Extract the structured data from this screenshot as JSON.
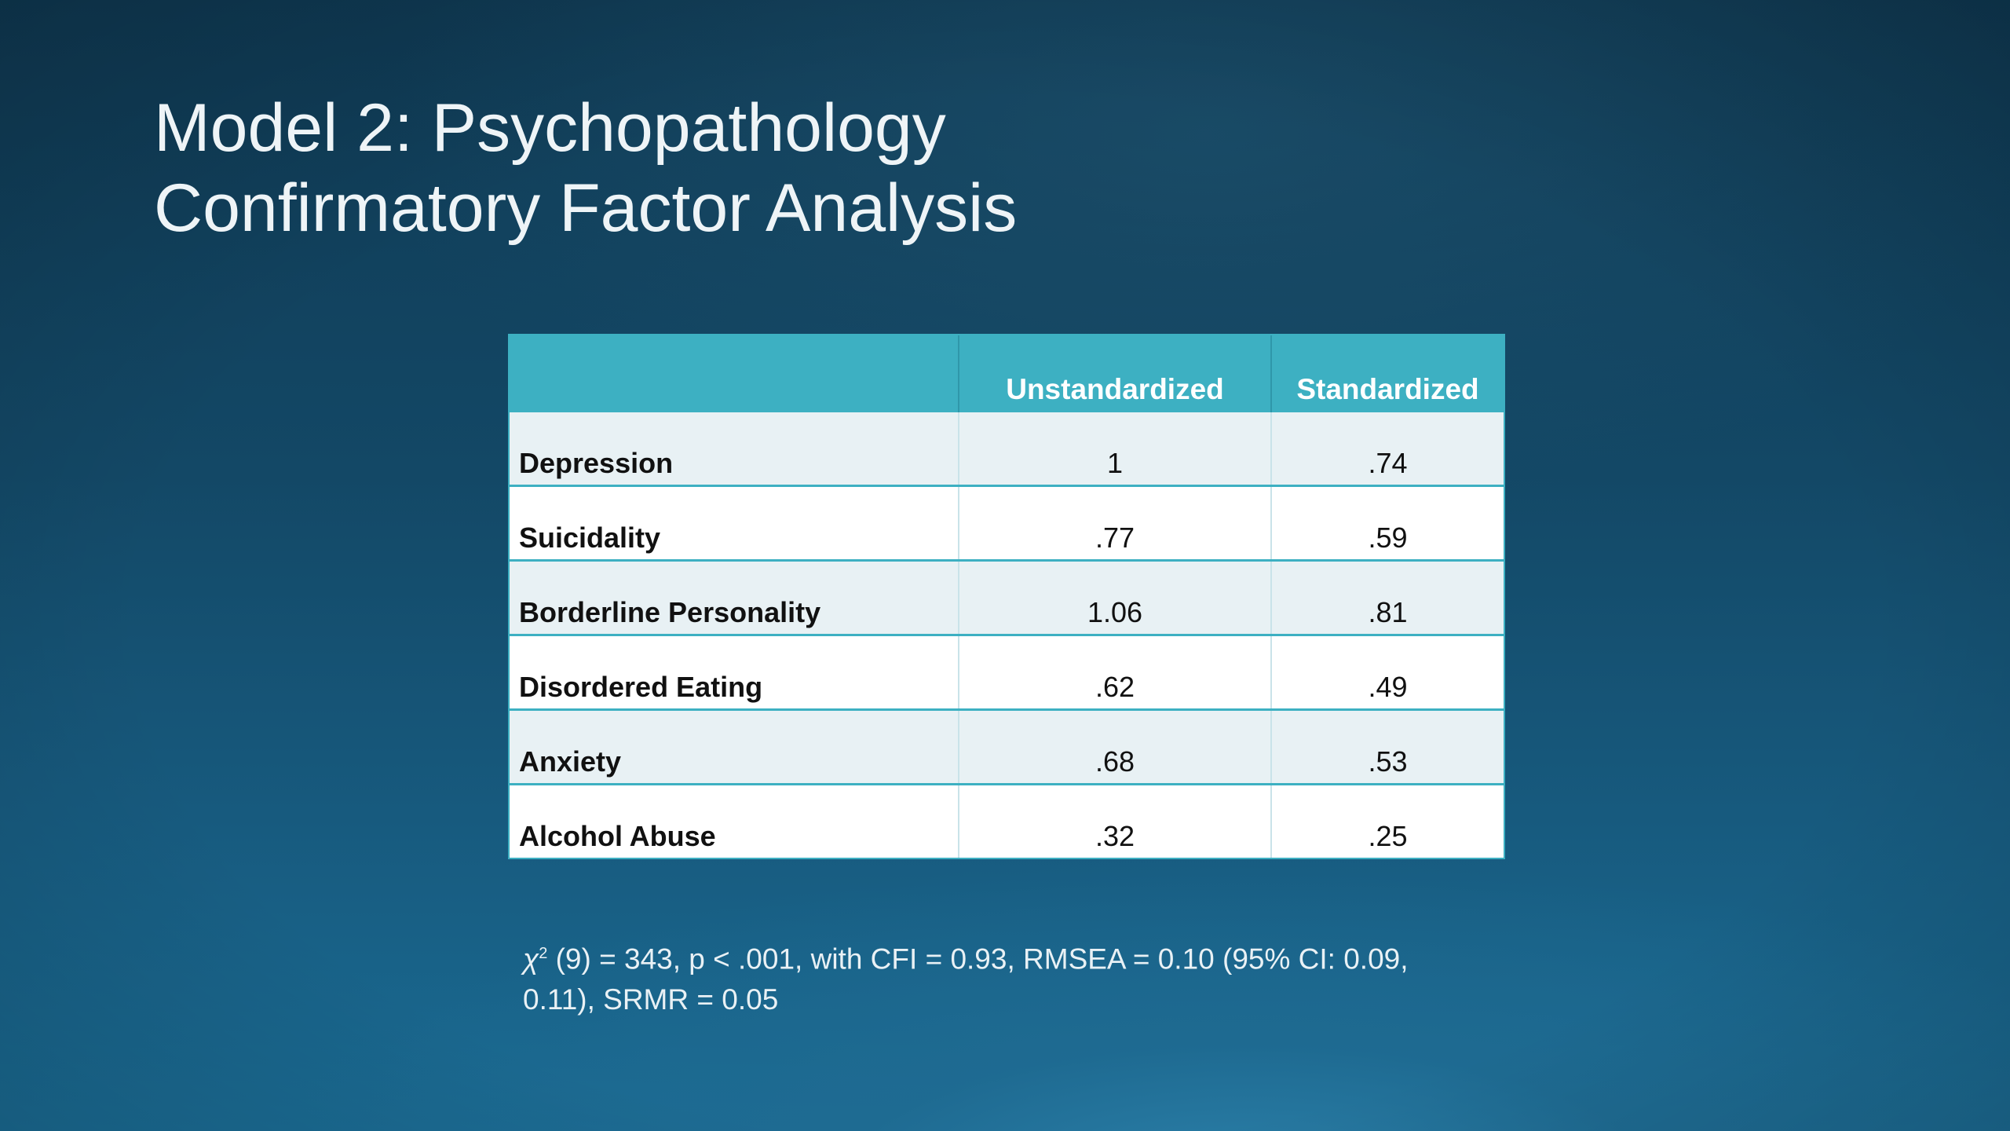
{
  "slide": {
    "title_line1": "Model 2: Psychopathology",
    "title_line2": "Confirmatory Factor Analysis"
  },
  "table": {
    "headers": [
      "",
      "Unstandardized",
      "Standardized"
    ],
    "rows": [
      {
        "label": "Depression",
        "unstandardized": "1",
        "standardized": ".74"
      },
      {
        "label": "Suicidality",
        "unstandardized": ".77",
        "standardized": ".59"
      },
      {
        "label": "Borderline Personality",
        "unstandardized": "1.06",
        "standardized": ".81"
      },
      {
        "label": "Disordered Eating",
        "unstandardized": ".62",
        "standardized": ".49"
      },
      {
        "label": "Anxiety",
        "unstandardized": ".68",
        "standardized": ".53"
      },
      {
        "label": "Alcohol Abuse",
        "unstandardized": ".32",
        "standardized": ".25"
      }
    ]
  },
  "footnote": {
    "chi_symbol": "χ",
    "superscript": "2",
    "text": " (9) = 343, p < .001, with CFI = 0.93, RMSEA = 0.10 (95% CI: 0.09, 0.11), SRMR = 0.05"
  },
  "colors": {
    "header_fill": "#3db0c2",
    "band_fill": "#e8f1f4",
    "background_top": "#0f3a54",
    "background_bottom": "#1a6b93"
  }
}
